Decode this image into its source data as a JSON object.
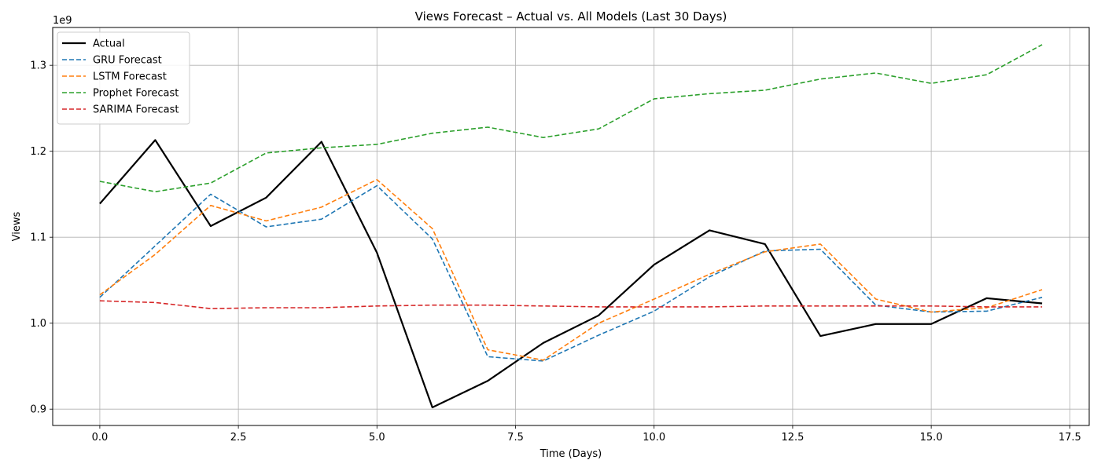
{
  "chart_data": {
    "type": "line",
    "title": "Views Forecast – Actual vs. All Models (Last 30 Days)",
    "xlabel": "Time (Days)",
    "ylabel": "Views",
    "y_scale_label": "1e9",
    "xlim": [
      -0.85,
      17.85
    ],
    "ylim": [
      0.881,
      1.344
    ],
    "x_ticks": [
      0.0,
      2.5,
      5.0,
      7.5,
      10.0,
      12.5,
      15.0,
      17.5
    ],
    "x_tick_labels": [
      "0.0",
      "2.5",
      "5.0",
      "7.5",
      "10.0",
      "12.5",
      "15.0",
      "17.5"
    ],
    "y_ticks": [
      0.9,
      1.0,
      1.1,
      1.2,
      1.3
    ],
    "y_tick_labels": [
      "0.9",
      "1.0",
      "1.1",
      "1.2",
      "1.3"
    ],
    "grid": true,
    "legend_position": "top-left",
    "x": [
      0,
      1,
      2,
      3,
      4,
      5,
      6,
      7,
      8,
      9,
      10,
      11,
      12,
      13,
      14,
      15,
      16,
      17
    ],
    "series": [
      {
        "name": "Actual",
        "color": "#000000",
        "style": "solid",
        "values": [
          1.139,
          1.213,
          1.113,
          1.146,
          1.211,
          1.082,
          0.902,
          0.933,
          0.977,
          1.009,
          1.068,
          1.108,
          1.092,
          0.985,
          0.999,
          0.999,
          1.029,
          1.023
        ]
      },
      {
        "name": "GRU Forecast",
        "color": "#1f77b4",
        "style": "dashed",
        "values": [
          1.03,
          1.09,
          1.15,
          1.112,
          1.121,
          1.16,
          1.098,
          0.961,
          0.956,
          0.986,
          1.014,
          1.054,
          1.084,
          1.086,
          1.021,
          1.013,
          1.014,
          1.03
        ]
      },
      {
        "name": "LSTM Forecast",
        "color": "#ff7f0e",
        "style": "dashed",
        "values": [
          1.033,
          1.08,
          1.137,
          1.119,
          1.135,
          1.167,
          1.11,
          0.969,
          0.957,
          1.0,
          1.028,
          1.057,
          1.083,
          1.092,
          1.028,
          1.013,
          1.018,
          1.039
        ]
      },
      {
        "name": "Prophet Forecast",
        "color": "#2ca02c",
        "style": "dashed",
        "values": [
          1.165,
          1.153,
          1.163,
          1.198,
          1.204,
          1.208,
          1.221,
          1.228,
          1.216,
          1.226,
          1.261,
          1.267,
          1.271,
          1.284,
          1.291,
          1.279,
          1.289,
          1.324
        ]
      },
      {
        "name": "SARIMA Forecast",
        "color": "#d62728",
        "style": "dashed",
        "values": [
          1.026,
          1.024,
          1.017,
          1.018,
          1.018,
          1.02,
          1.021,
          1.021,
          1.02,
          1.019,
          1.019,
          1.019,
          1.02,
          1.02,
          1.02,
          1.02,
          1.019,
          1.019
        ]
      }
    ]
  }
}
